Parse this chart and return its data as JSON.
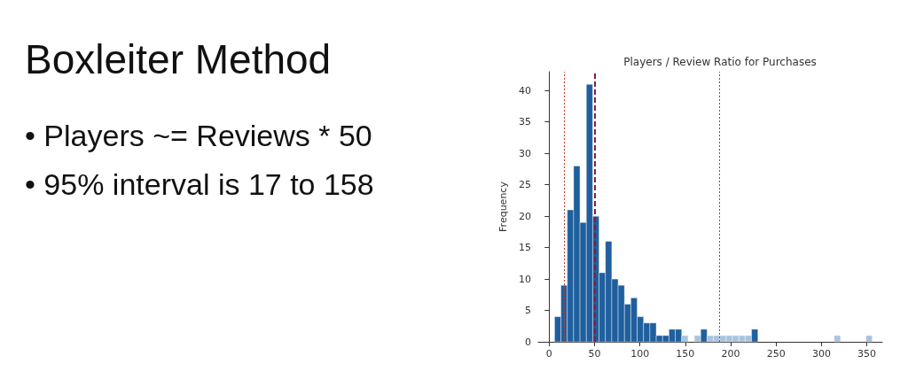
{
  "chart_data": {
    "type": "histogram",
    "title": "Players / Review Ratio for Purchases",
    "ylabel": "Frequency",
    "annotations": [
      "Boxleiter Method",
      "• Players ~= Reviews * 50",
      "• 95% interval is 17 to 158"
    ],
    "bins": [
      6,
      13,
      20,
      27,
      34,
      41,
      48,
      55,
      62,
      69,
      76,
      83,
      90,
      97,
      104,
      111,
      118,
      125,
      132,
      139,
      146,
      153,
      160,
      167,
      174,
      181,
      188,
      195,
      202,
      209,
      216,
      223,
      230,
      237,
      244,
      251,
      258,
      265,
      272,
      279,
      286,
      293,
      300,
      307,
      314,
      321,
      328,
      335,
      342,
      349,
      356
    ],
    "values": [
      4,
      9,
      21,
      28,
      19,
      41,
      20,
      11,
      16,
      10,
      9,
      6,
      7,
      4,
      3,
      3,
      1,
      1,
      2,
      2,
      1,
      0,
      1,
      2,
      1,
      1,
      1,
      1,
      1,
      1,
      1,
      2,
      0,
      0,
      0,
      0,
      0,
      0,
      0,
      0,
      0,
      0,
      0,
      0,
      1,
      0,
      0,
      0,
      0,
      1
    ],
    "colors": [
      "#1f5f9e",
      "#1f5f9e",
      "#1f5f9e",
      "#1f5f9e",
      "#1f5f9e",
      "#1f5f9e",
      "#1f5f9e",
      "#1f5f9e",
      "#1f5f9e",
      "#1f5f9e",
      "#1f5f9e",
      "#1f5f9e",
      "#1f5f9e",
      "#1f5f9e",
      "#1f5f9e",
      "#1f5f9e",
      "#1f5f9e",
      "#1f5f9e",
      "#1f5f9e",
      "#1f5f9e",
      "#a9c4dd",
      null,
      "#a9c4dd",
      "#1f5f9e",
      "#a9c4dd",
      "#a9c4dd",
      "#a9c4dd",
      "#a9c4dd",
      "#a9c4dd",
      "#a9c4dd",
      "#a9c4dd",
      "#1f5f9e",
      null,
      null,
      null,
      null,
      null,
      null,
      null,
      null,
      null,
      null,
      null,
      null,
      "#a9c4dd",
      null,
      null,
      null,
      null,
      "#a9c4dd"
    ],
    "xlim": [
      -12,
      367
    ],
    "xticks": [
      0,
      50,
      100,
      150,
      200,
      250,
      300,
      350
    ],
    "ylim": [
      0,
      43
    ],
    "yticks": [
      0,
      5,
      10,
      15,
      20,
      25,
      30,
      35,
      40
    ],
    "ref_lines": [
      {
        "axis": "x",
        "value": 17,
        "color": "#c0392b",
        "line_style": "dotted"
      },
      {
        "axis": "x",
        "value": 50,
        "color": "#8b1a3a",
        "line_style": "dashed"
      },
      {
        "axis": "x",
        "value": 188,
        "color": "#c0392b",
        "line_style": "dotted"
      }
    ],
    "grid": false
  }
}
